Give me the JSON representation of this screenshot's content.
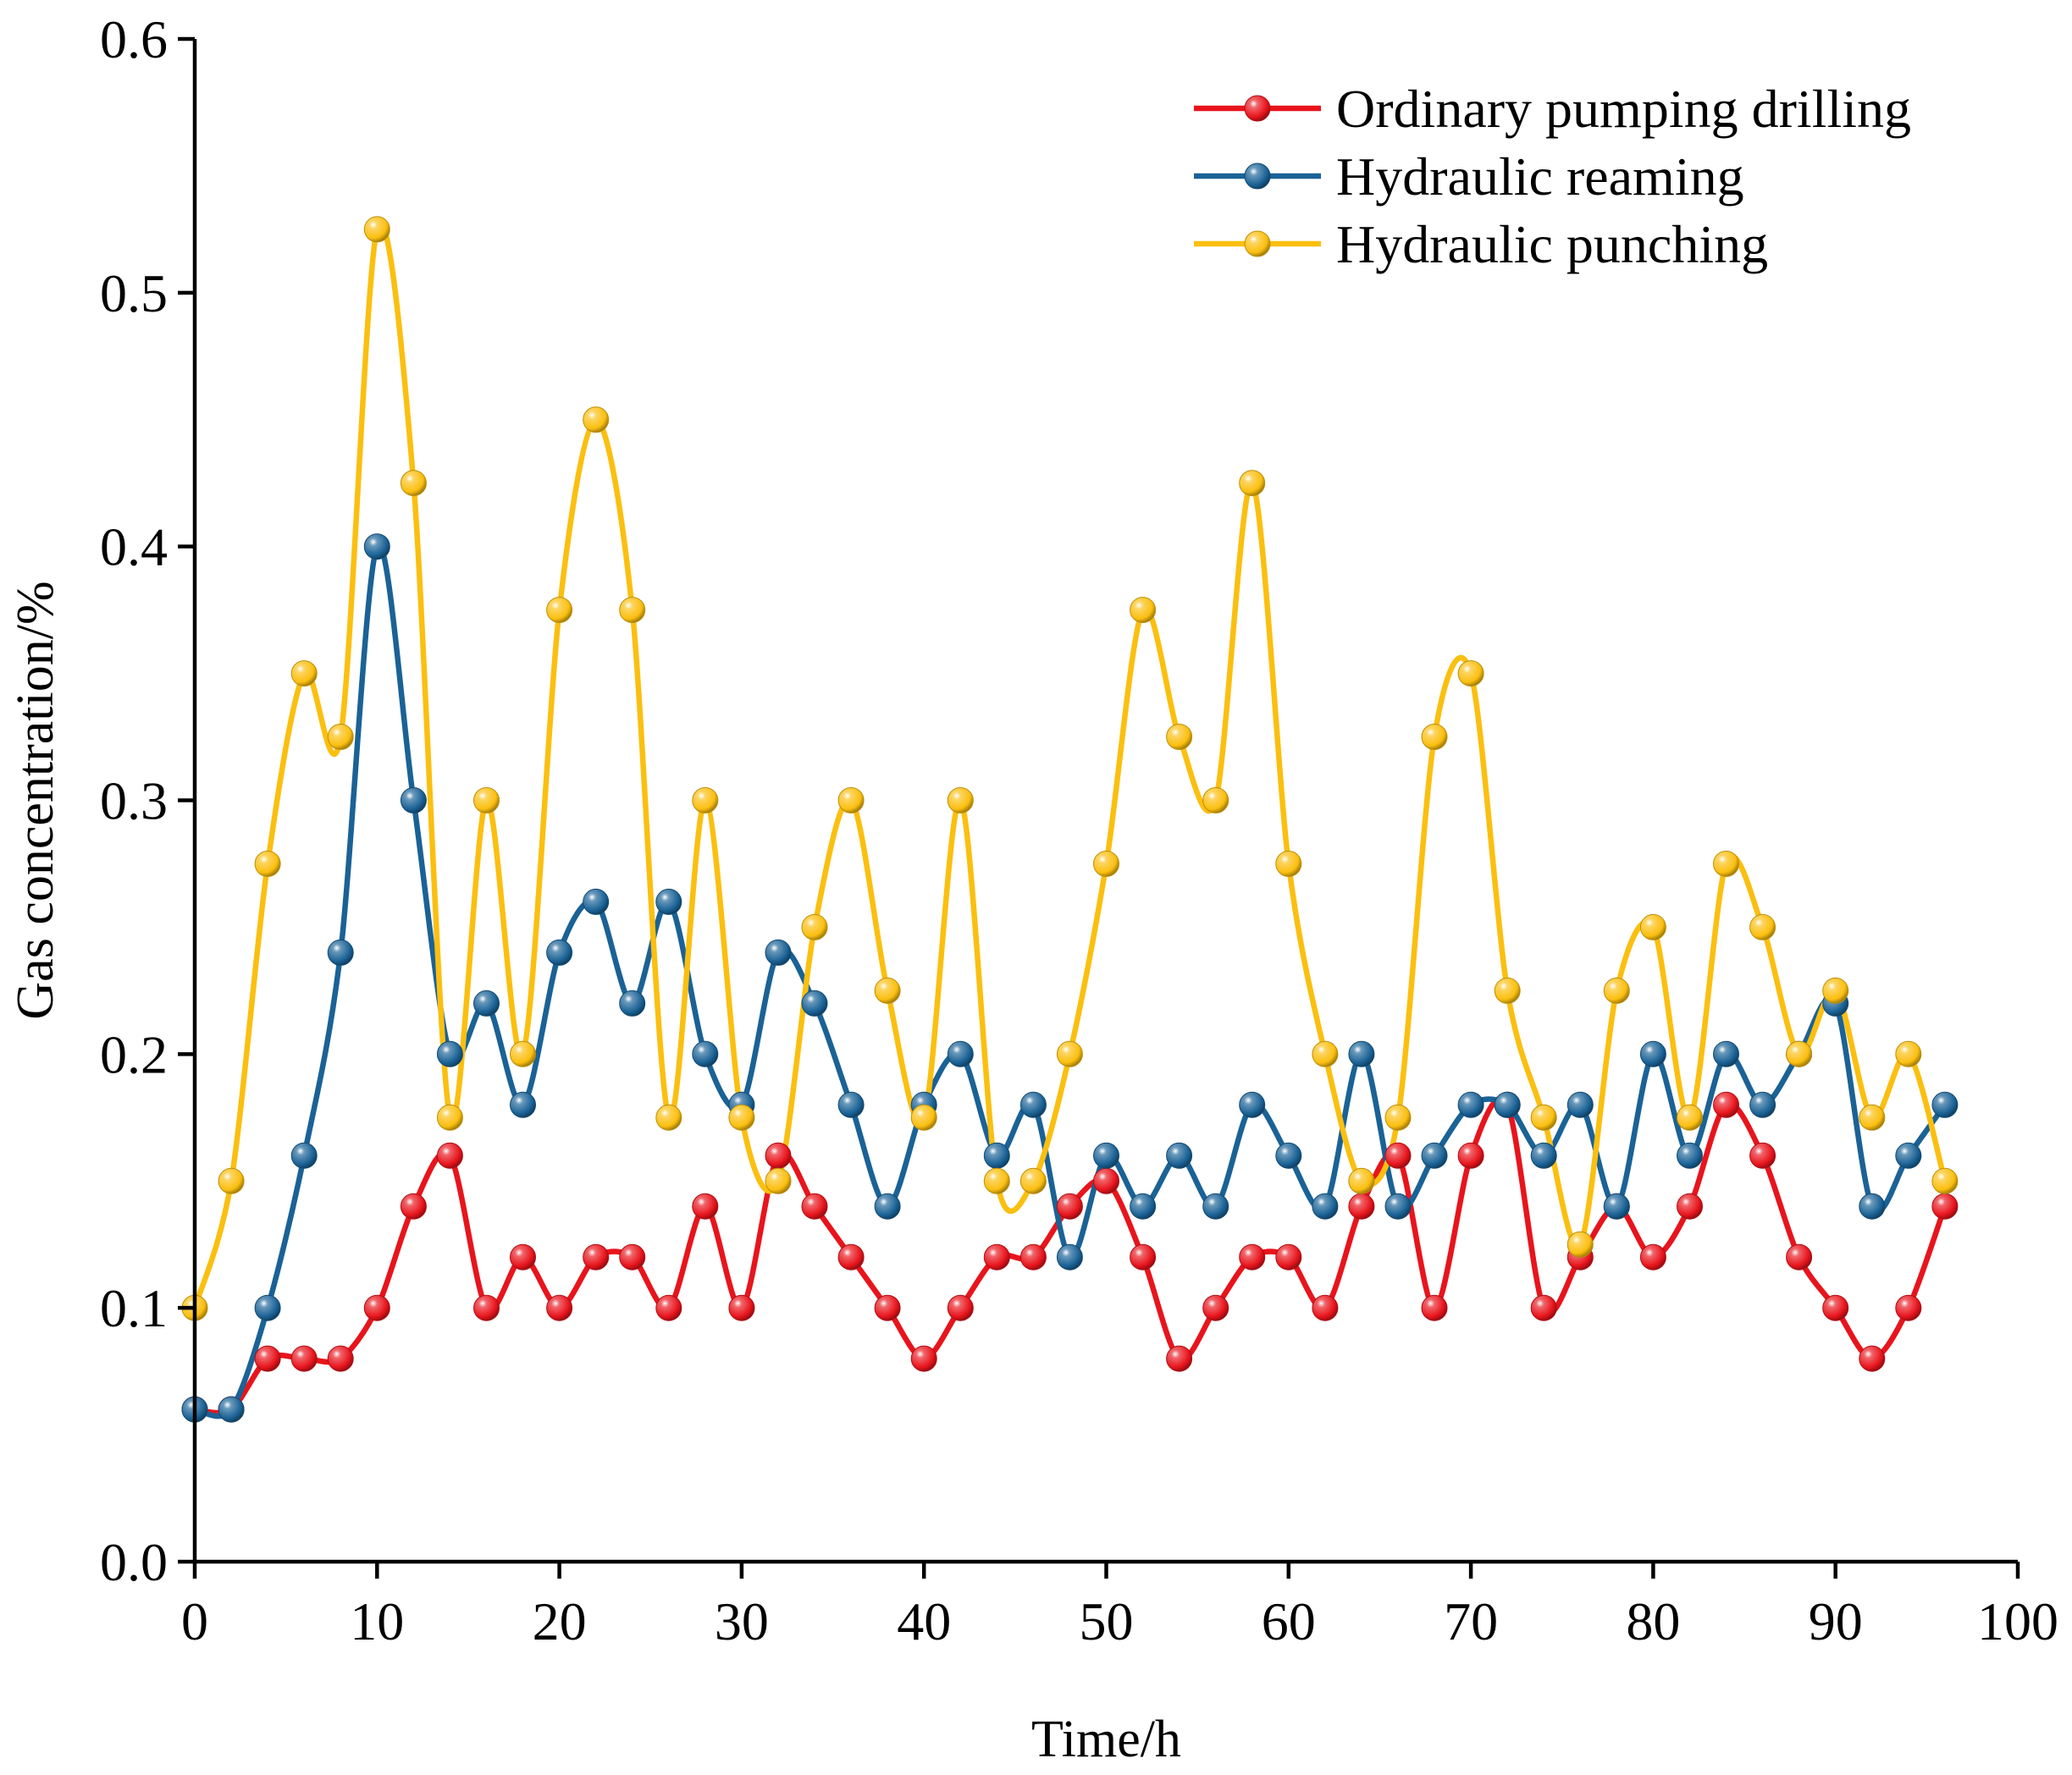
{
  "chart_data": {
    "type": "scatter",
    "xlabel": "Time/h",
    "ylabel": "Gas concentration/%",
    "xlim": [
      0,
      100
    ],
    "ylim": [
      0,
      0.6
    ],
    "xticks": [
      "0",
      "10",
      "20",
      "30",
      "40",
      "50",
      "60",
      "70",
      "80",
      "90",
      "100"
    ],
    "yticks": [
      "0.0",
      "0.1",
      "0.2",
      "0.3",
      "0.4",
      "0.5",
      "0.6"
    ],
    "legend_position": "top-right",
    "x": [
      0,
      2,
      4,
      6,
      8,
      10,
      12,
      14,
      16,
      18,
      20,
      22,
      24,
      26,
      28,
      30,
      32,
      34,
      36,
      38,
      40,
      42,
      44,
      46,
      48,
      50,
      52,
      54,
      56,
      58,
      60,
      62,
      64,
      66,
      68,
      70,
      72,
      74,
      76,
      78,
      80,
      82,
      84,
      86,
      88,
      90,
      92,
      94,
      96
    ],
    "series": [
      {
        "name": "Ordinary pumping drilling",
        "color": "#e8141c",
        "values": [
          0.06,
          0.06,
          0.08,
          0.08,
          0.08,
          0.1,
          0.14,
          0.16,
          0.1,
          0.12,
          0.1,
          0.12,
          0.12,
          0.1,
          0.14,
          0.1,
          0.16,
          0.14,
          0.12,
          0.1,
          0.08,
          0.1,
          0.12,
          0.12,
          0.14,
          0.15,
          0.12,
          0.08,
          0.1,
          0.12,
          0.12,
          0.1,
          0.14,
          0.16,
          0.1,
          0.16,
          0.18,
          0.1,
          0.12,
          0.14,
          0.12,
          0.14,
          0.18,
          0.16,
          0.12,
          0.1,
          0.08,
          0.1,
          0.14
        ]
      },
      {
        "name": "Hydraulic reaming",
        "color": "#1a6296",
        "values": [
          0.06,
          0.06,
          0.1,
          0.16,
          0.24,
          0.4,
          0.3,
          0.2,
          0.22,
          0.18,
          0.24,
          0.26,
          0.22,
          0.26,
          0.2,
          0.18,
          0.24,
          0.22,
          0.18,
          0.14,
          0.18,
          0.2,
          0.16,
          0.18,
          0.12,
          0.16,
          0.14,
          0.16,
          0.14,
          0.18,
          0.16,
          0.14,
          0.2,
          0.14,
          0.16,
          0.18,
          0.18,
          0.16,
          0.18,
          0.14,
          0.2,
          0.16,
          0.2,
          0.18,
          0.2,
          0.22,
          0.14,
          0.16,
          0.18
        ]
      },
      {
        "name": "Hydraulic punching",
        "color": "#fbbf0f",
        "values": [
          0.1,
          0.15,
          0.275,
          0.35,
          0.325,
          0.525,
          0.425,
          0.175,
          0.3,
          0.2,
          0.375,
          0.45,
          0.375,
          0.175,
          0.3,
          0.175,
          0.15,
          0.25,
          0.3,
          0.225,
          0.175,
          0.3,
          0.15,
          0.15,
          0.2,
          0.275,
          0.375,
          0.325,
          0.3,
          0.425,
          0.275,
          0.2,
          0.15,
          0.175,
          0.325,
          0.35,
          0.225,
          0.175,
          0.125,
          0.225,
          0.25,
          0.175,
          0.275,
          0.25,
          0.2,
          0.225,
          0.175,
          0.2,
          0.15
        ]
      }
    ]
  }
}
